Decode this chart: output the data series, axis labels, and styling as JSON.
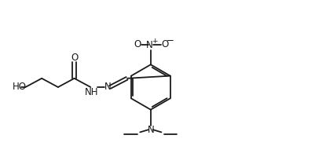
{
  "background_color": "#ffffff",
  "line_color": "#1a1a1a",
  "line_width": 1.3,
  "font_size": 8.5,
  "fig_width": 4.02,
  "fig_height": 2.14,
  "dpi": 100,
  "xlim": [
    0,
    10
  ],
  "ylim": [
    0,
    5.3
  ]
}
